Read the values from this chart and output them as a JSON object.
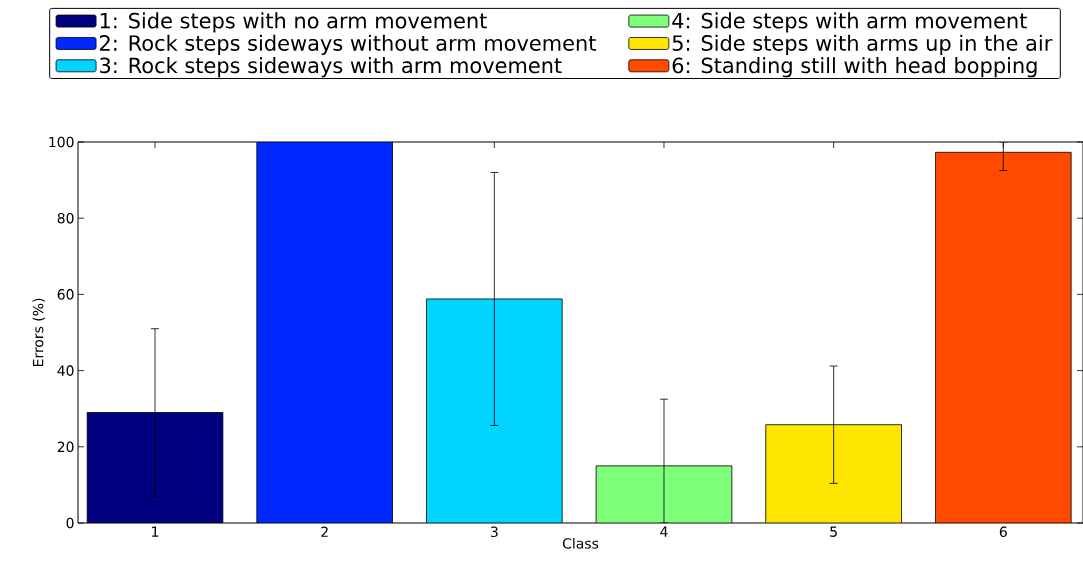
{
  "chart_data": {
    "type": "bar",
    "xlabel": "Class",
    "ylabel": "Errors (%)",
    "categories": [
      "1",
      "2",
      "3",
      "4",
      "5",
      "6"
    ],
    "series": [
      {
        "name": "1: Side steps with no arm movement",
        "color": "#000080",
        "values": [
          29,
          null,
          null,
          null,
          null,
          null
        ],
        "errors": [
          22,
          null,
          null,
          null,
          null,
          null
        ]
      },
      {
        "name": "2: Rock steps sideways without arm movement",
        "color": "#0028ff",
        "values": [
          null,
          100,
          null,
          null,
          null,
          null
        ]
      },
      {
        "name": "3: Rock steps sideways with arm movement",
        "color": "#00d4ff",
        "values": [
          null,
          null,
          58.8,
          null,
          null,
          null
        ],
        "errors": [
          null,
          null,
          33.2,
          null,
          null,
          null
        ]
      },
      {
        "name": "4: Side steps with arm movement",
        "color": "#7dff7a",
        "values": [
          null,
          null,
          null,
          15,
          null,
          null
        ],
        "errors": [
          null,
          null,
          null,
          [
            0,
            32.5
          ],
          null,
          null
        ]
      },
      {
        "name": "5: Side steps with arms up in the air",
        "color": "#ffe600",
        "values": [
          null,
          null,
          null,
          null,
          25.8,
          null
        ],
        "errors": [
          null,
          null,
          null,
          null,
          15.4,
          null
        ]
      },
      {
        "name": "6: Standing still with head bopping",
        "color": "#ff4a00",
        "values": [
          null,
          null,
          null,
          null,
          null,
          97.3
        ],
        "errors": [
          null,
          null,
          null,
          null,
          null,
          [
            92.5,
            100
          ]
        ]
      }
    ],
    "ylim": [
      0,
      100
    ],
    "yticks": [
      0,
      20,
      40,
      60,
      80,
      100
    ],
    "legend": "top"
  }
}
